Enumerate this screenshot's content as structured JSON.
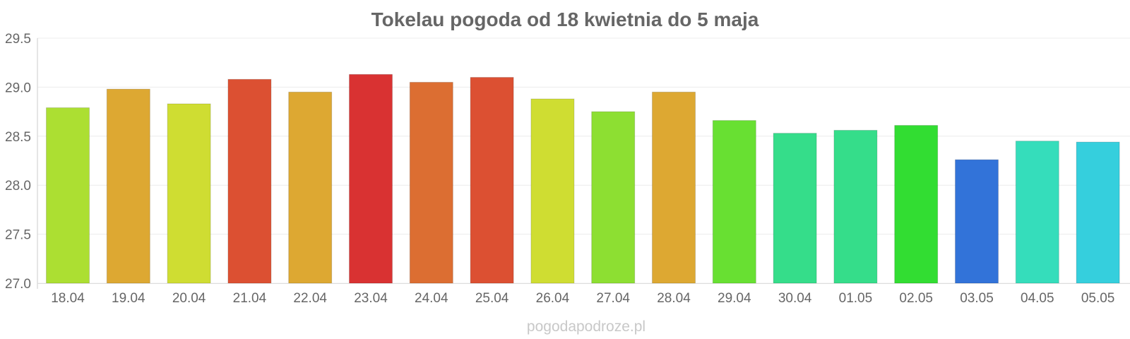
{
  "chart_data": {
    "type": "bar",
    "title": "Tokelau pogoda od 18 kwietnia do 5 maja",
    "xlabel": "",
    "ylabel": "",
    "ylim": [
      27.0,
      29.5
    ],
    "yticks": [
      "27.0",
      "27.5",
      "28.0",
      "28.5",
      "29.0",
      "29.5"
    ],
    "categories": [
      "18.04",
      "19.04",
      "20.04",
      "21.04",
      "22.04",
      "23.04",
      "24.04",
      "25.04",
      "26.04",
      "27.04",
      "28.04",
      "29.04",
      "30.04",
      "01.05",
      "02.05",
      "03.05",
      "04.05",
      "05.05"
    ],
    "values": [
      28.79,
      28.98,
      28.83,
      29.08,
      28.95,
      29.13,
      29.05,
      29.1,
      28.88,
      28.75,
      28.95,
      28.66,
      28.53,
      28.56,
      28.61,
      28.26,
      28.45,
      28.44
    ],
    "colors": [
      "#acdf32",
      "#dda832",
      "#cfdd32",
      "#dc5032",
      "#dda832",
      "#d93232",
      "#dc6e32",
      "#dc5032",
      "#cfdd32",
      "#8ddf32",
      "#dda832",
      "#68e032",
      "#35dd8a",
      "#35dd8a",
      "#32dd32",
      "#3273d9",
      "#35ddbb",
      "#35cfdd"
    ],
    "grid": true,
    "legend": "none"
  },
  "watermark": "pogodapodroze.pl"
}
